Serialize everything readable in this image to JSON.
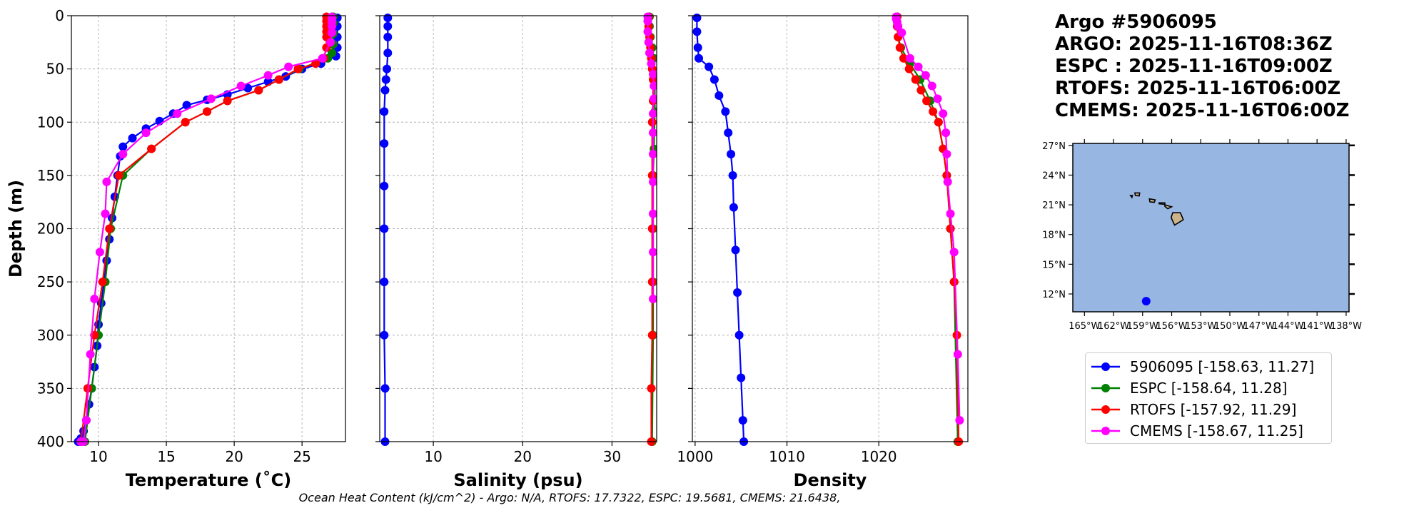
{
  "header": {
    "lines": [
      "Argo #5906095",
      "ARGO: 2025-11-16T08:36Z",
      "ESPC : 2025-11-16T09:00Z",
      "RTOFS: 2025-11-16T06:00Z",
      "CMEMS: 2025-11-16T06:00Z"
    ]
  },
  "footer_text": "Ocean Heat Content (kJ/cm^2) - Argo: N/A,  RTOFS: 17.7322,  ESPC: 19.5681,  CMEMS: 21.6438,",
  "legend": [
    {
      "label": "5906095 [-158.63, 11.27]",
      "color": "#0000ff"
    },
    {
      "label": "ESPC [-158.64, 11.28]",
      "color": "#008000"
    },
    {
      "label": "RTOFS [-157.92, 11.29]",
      "color": "#ff0000"
    },
    {
      "label": "CMEMS [-158.67, 11.25]",
      "color": "#ff00ff"
    }
  ],
  "chart_data": [
    {
      "type": "line",
      "title": "",
      "xlabel": "Temperature (˚C)",
      "ylabel": "Depth (m)",
      "xlim": [
        8,
        28.2
      ],
      "ylim": [
        400,
        0
      ],
      "xticks": [
        10,
        15,
        20,
        25
      ],
      "yticks": [
        0,
        50,
        100,
        150,
        200,
        250,
        300,
        350,
        400
      ],
      "grid": true,
      "series": [
        {
          "name": "5906095",
          "color": "#0000ff",
          "x": [
            27.6,
            27.6,
            27.6,
            27.6,
            27.5,
            26.4,
            25.0,
            23.8,
            22.5,
            21.0,
            19.5,
            18.0,
            16.5,
            15.5,
            14.5,
            13.5,
            12.5,
            11.8,
            11.6,
            11.4,
            11.2,
            11.0,
            10.8,
            10.6,
            10.4,
            10.2,
            10.0,
            9.9,
            9.7,
            9.5,
            9.3,
            9.1,
            8.9,
            8.7,
            8.5
          ],
          "y": [
            2,
            10,
            20,
            30,
            38,
            45,
            50,
            57,
            62,
            68,
            74,
            79,
            84,
            92,
            99,
            106,
            115,
            123,
            132,
            150,
            170,
            190,
            210,
            230,
            250,
            270,
            290,
            310,
            330,
            350,
            365,
            380,
            390,
            397,
            400
          ]
        },
        {
          "name": "ESPC",
          "color": "#008000",
          "x": [
            27.3,
            27.3,
            27.3,
            27.3,
            27.2,
            26.9,
            24.8,
            23.3,
            21.8,
            19.5,
            18.0,
            16.4,
            13.9,
            11.8,
            10.9,
            10.5,
            10.0,
            9.5,
            9.0,
            8.7
          ],
          "y": [
            1,
            7,
            17,
            27,
            35,
            40,
            50,
            60,
            70,
            80,
            90,
            100,
            125,
            150,
            200,
            250,
            300,
            350,
            400,
            400
          ]
        },
        {
          "name": "RTOFS",
          "color": "#ff0000",
          "x": [
            26.8,
            26.8,
            26.8,
            26.8,
            26.8,
            26.8,
            26.6,
            26.0,
            24.7,
            23.3,
            21.8,
            19.5,
            18.0,
            16.4,
            13.9,
            11.5,
            10.8,
            10.3,
            9.7,
            9.2,
            8.7
          ],
          "y": [
            1,
            5,
            10,
            15,
            20,
            30,
            40,
            45,
            50,
            60,
            70,
            80,
            90,
            100,
            125,
            150,
            200,
            250,
            300,
            350,
            400
          ]
        },
        {
          "name": "CMEMS",
          "color": "#ff00ff",
          "x": [
            27.2,
            27.2,
            27.2,
            27.2,
            27.2,
            27.1,
            26.5,
            24.0,
            22.5,
            20.5,
            18.3,
            15.8,
            13.5,
            11.8,
            10.6,
            10.5,
            10.1,
            9.7,
            9.4,
            9.1,
            8.9,
            8.7
          ],
          "y": [
            1,
            3,
            6,
            10,
            16,
            25,
            40,
            48,
            56,
            66,
            78,
            92,
            110,
            130,
            156,
            186,
            222,
            266,
            318,
            380,
            400,
            400
          ]
        }
      ]
    },
    {
      "type": "line",
      "title": "",
      "xlabel": "Salinity (psu)",
      "ylabel": "",
      "xlim": [
        4,
        35
      ],
      "ylim": [
        400,
        0
      ],
      "xticks": [
        10,
        20,
        30
      ],
      "yticks": [
        0,
        50,
        100,
        150,
        200,
        250,
        300,
        350,
        400
      ],
      "grid": true,
      "series": [
        {
          "name": "5906095",
          "color": "#0000ff",
          "x": [
            4.9,
            4.9,
            4.9,
            4.9,
            4.8,
            4.7,
            4.6,
            4.5,
            4.5,
            4.5,
            4.5,
            4.5,
            4.5,
            4.6,
            4.6
          ],
          "y": [
            2,
            10,
            20,
            35,
            50,
            60,
            70,
            90,
            120,
            160,
            200,
            250,
            300,
            350,
            400
          ]
        },
        {
          "name": "ESPC",
          "color": "#008000",
          "x": [
            34.2,
            34.2,
            34.3,
            34.5,
            34.7,
            34.8,
            34.8,
            34.7,
            34.6,
            34.6,
            34.6,
            34.6,
            34.5
          ],
          "y": [
            1,
            10,
            20,
            30,
            40,
            60,
            90,
            125,
            150,
            200,
            250,
            300,
            400
          ]
        },
        {
          "name": "RTOFS",
          "color": "#ff0000",
          "x": [
            34.1,
            34.1,
            34.2,
            34.3,
            34.4,
            34.5,
            34.6,
            34.6,
            34.5,
            34.5,
            34.5,
            34.5,
            34.5,
            34.4,
            34.4
          ],
          "y": [
            1,
            10,
            20,
            30,
            40,
            50,
            60,
            80,
            100,
            150,
            200,
            250,
            300,
            350,
            400
          ]
        },
        {
          "name": "CMEMS",
          "color": "#ff00ff",
          "x": [
            34.0,
            34.0,
            34.0,
            34.1,
            34.2,
            34.4,
            34.6,
            34.7,
            34.7,
            34.6,
            34.6,
            34.6,
            34.6,
            34.6,
            34.6,
            34.6
          ],
          "y": [
            1,
            5,
            15,
            25,
            35,
            45,
            55,
            66,
            78,
            92,
            110,
            130,
            156,
            186,
            222,
            266
          ]
        }
      ]
    },
    {
      "type": "line",
      "title": "",
      "xlabel": "Density",
      "ylabel": "",
      "xlim": [
        999.7,
        1029.7
      ],
      "ylim": [
        400,
        0
      ],
      "xticks": [
        1000,
        1010,
        1020
      ],
      "yticks": [
        0,
        50,
        100,
        150,
        200,
        250,
        300,
        350,
        400
      ],
      "grid": true,
      "series": [
        {
          "name": "5906095",
          "color": "#0000ff",
          "x": [
            1000.2,
            1000.2,
            1000.3,
            1000.4,
            1001.5,
            1002.1,
            1002.6,
            1003.3,
            1003.6,
            1003.9,
            1004.1,
            1004.2,
            1004.4,
            1004.6,
            1004.8,
            1005.0,
            1005.2,
            1005.3
          ],
          "y": [
            2,
            15,
            30,
            40,
            48,
            60,
            75,
            90,
            110,
            130,
            150,
            180,
            220,
            260,
            300,
            340,
            380,
            400
          ]
        },
        {
          "name": "ESPC",
          "color": "#008000",
          "x": [
            1022.0,
            1022.0,
            1022.1,
            1022.4,
            1023.4,
            1024.5,
            1025.6,
            1026.5,
            1027.0,
            1027.4,
            1027.8,
            1028.2,
            1028.6
          ],
          "y": [
            1,
            10,
            20,
            30,
            45,
            60,
            80,
            100,
            125,
            150,
            200,
            250,
            400
          ]
        },
        {
          "name": "RTOFS",
          "color": "#ff0000",
          "x": [
            1022.0,
            1022.0,
            1022.1,
            1022.3,
            1022.7,
            1023.3,
            1024.0,
            1024.6,
            1025.2,
            1025.9,
            1026.5,
            1027.0,
            1027.4,
            1027.8,
            1028.2,
            1028.5,
            1028.7
          ],
          "y": [
            1,
            10,
            20,
            30,
            40,
            50,
            60,
            70,
            80,
            90,
            100,
            125,
            150,
            200,
            250,
            300,
            400
          ]
        },
        {
          "name": "CMEMS",
          "color": "#ff00ff",
          "x": [
            1021.9,
            1021.9,
            1022.0,
            1022.1,
            1022.5,
            1023.4,
            1024.3,
            1025.1,
            1025.8,
            1026.4,
            1027.0,
            1027.3,
            1027.4,
            1027.5,
            1027.8,
            1028.2,
            1028.6,
            1028.8
          ],
          "y": [
            1,
            3,
            6,
            10,
            16,
            40,
            48,
            56,
            66,
            78,
            92,
            110,
            130,
            156,
            186,
            222,
            318,
            380
          ]
        }
      ]
    },
    {
      "type": "scatter",
      "title": "",
      "xlabel": "",
      "ylabel": "",
      "xlim": [
        -166.2,
        -137.7
      ],
      "ylim": [
        10.2,
        27.2
      ],
      "xtick_values": [
        -165,
        -162,
        -159,
        -156,
        -153,
        -150,
        -147,
        -144,
        -141,
        -138
      ],
      "xtick_labels": [
        "165°W",
        "162°W",
        "159°W",
        "156°W",
        "153°W",
        "150°W",
        "147°W",
        "144°W",
        "141°W",
        "138°W"
      ],
      "ytick_values": [
        12,
        15,
        18,
        21,
        24,
        27
      ],
      "ytick_labels": [
        "12°N",
        "15°N",
        "18°N",
        "21°N",
        "24°N",
        "27°N"
      ],
      "grid": false,
      "series": [
        {
          "name": "5906095",
          "color": "#0000ff",
          "x": [
            -158.63
          ],
          "y": [
            11.27
          ]
        }
      ],
      "islands": [
        {
          "name": "Hawaii",
          "lonlat": [
            [
              -155.9,
              20.2
            ],
            [
              -155.1,
              20.2
            ],
            [
              -154.8,
              19.5
            ],
            [
              -155.7,
              18.95
            ],
            [
              -156.05,
              19.7
            ]
          ]
        },
        {
          "name": "Maui",
          "lonlat": [
            [
              -156.7,
              21.0
            ],
            [
              -156.0,
              20.8
            ],
            [
              -156.4,
              20.6
            ],
            [
              -156.7,
              20.85
            ]
          ]
        },
        {
          "name": "Molokai",
          "lonlat": [
            [
              -157.3,
              21.2
            ],
            [
              -156.7,
              21.2
            ],
            [
              -156.7,
              21.05
            ],
            [
              -157.3,
              21.1
            ]
          ]
        },
        {
          "name": "Oahu",
          "lonlat": [
            [
              -158.3,
              21.6
            ],
            [
              -157.7,
              21.5
            ],
            [
              -157.8,
              21.25
            ],
            [
              -158.25,
              21.3
            ]
          ]
        },
        {
          "name": "Kauai",
          "lonlat": [
            [
              -159.8,
              22.2
            ],
            [
              -159.3,
              22.2
            ],
            [
              -159.35,
              21.9
            ],
            [
              -159.75,
              21.95
            ]
          ]
        },
        {
          "name": "Niihau",
          "lonlat": [
            [
              -160.25,
              21.95
            ],
            [
              -160.05,
              21.95
            ],
            [
              -160.1,
              21.75
            ]
          ]
        }
      ]
    }
  ]
}
